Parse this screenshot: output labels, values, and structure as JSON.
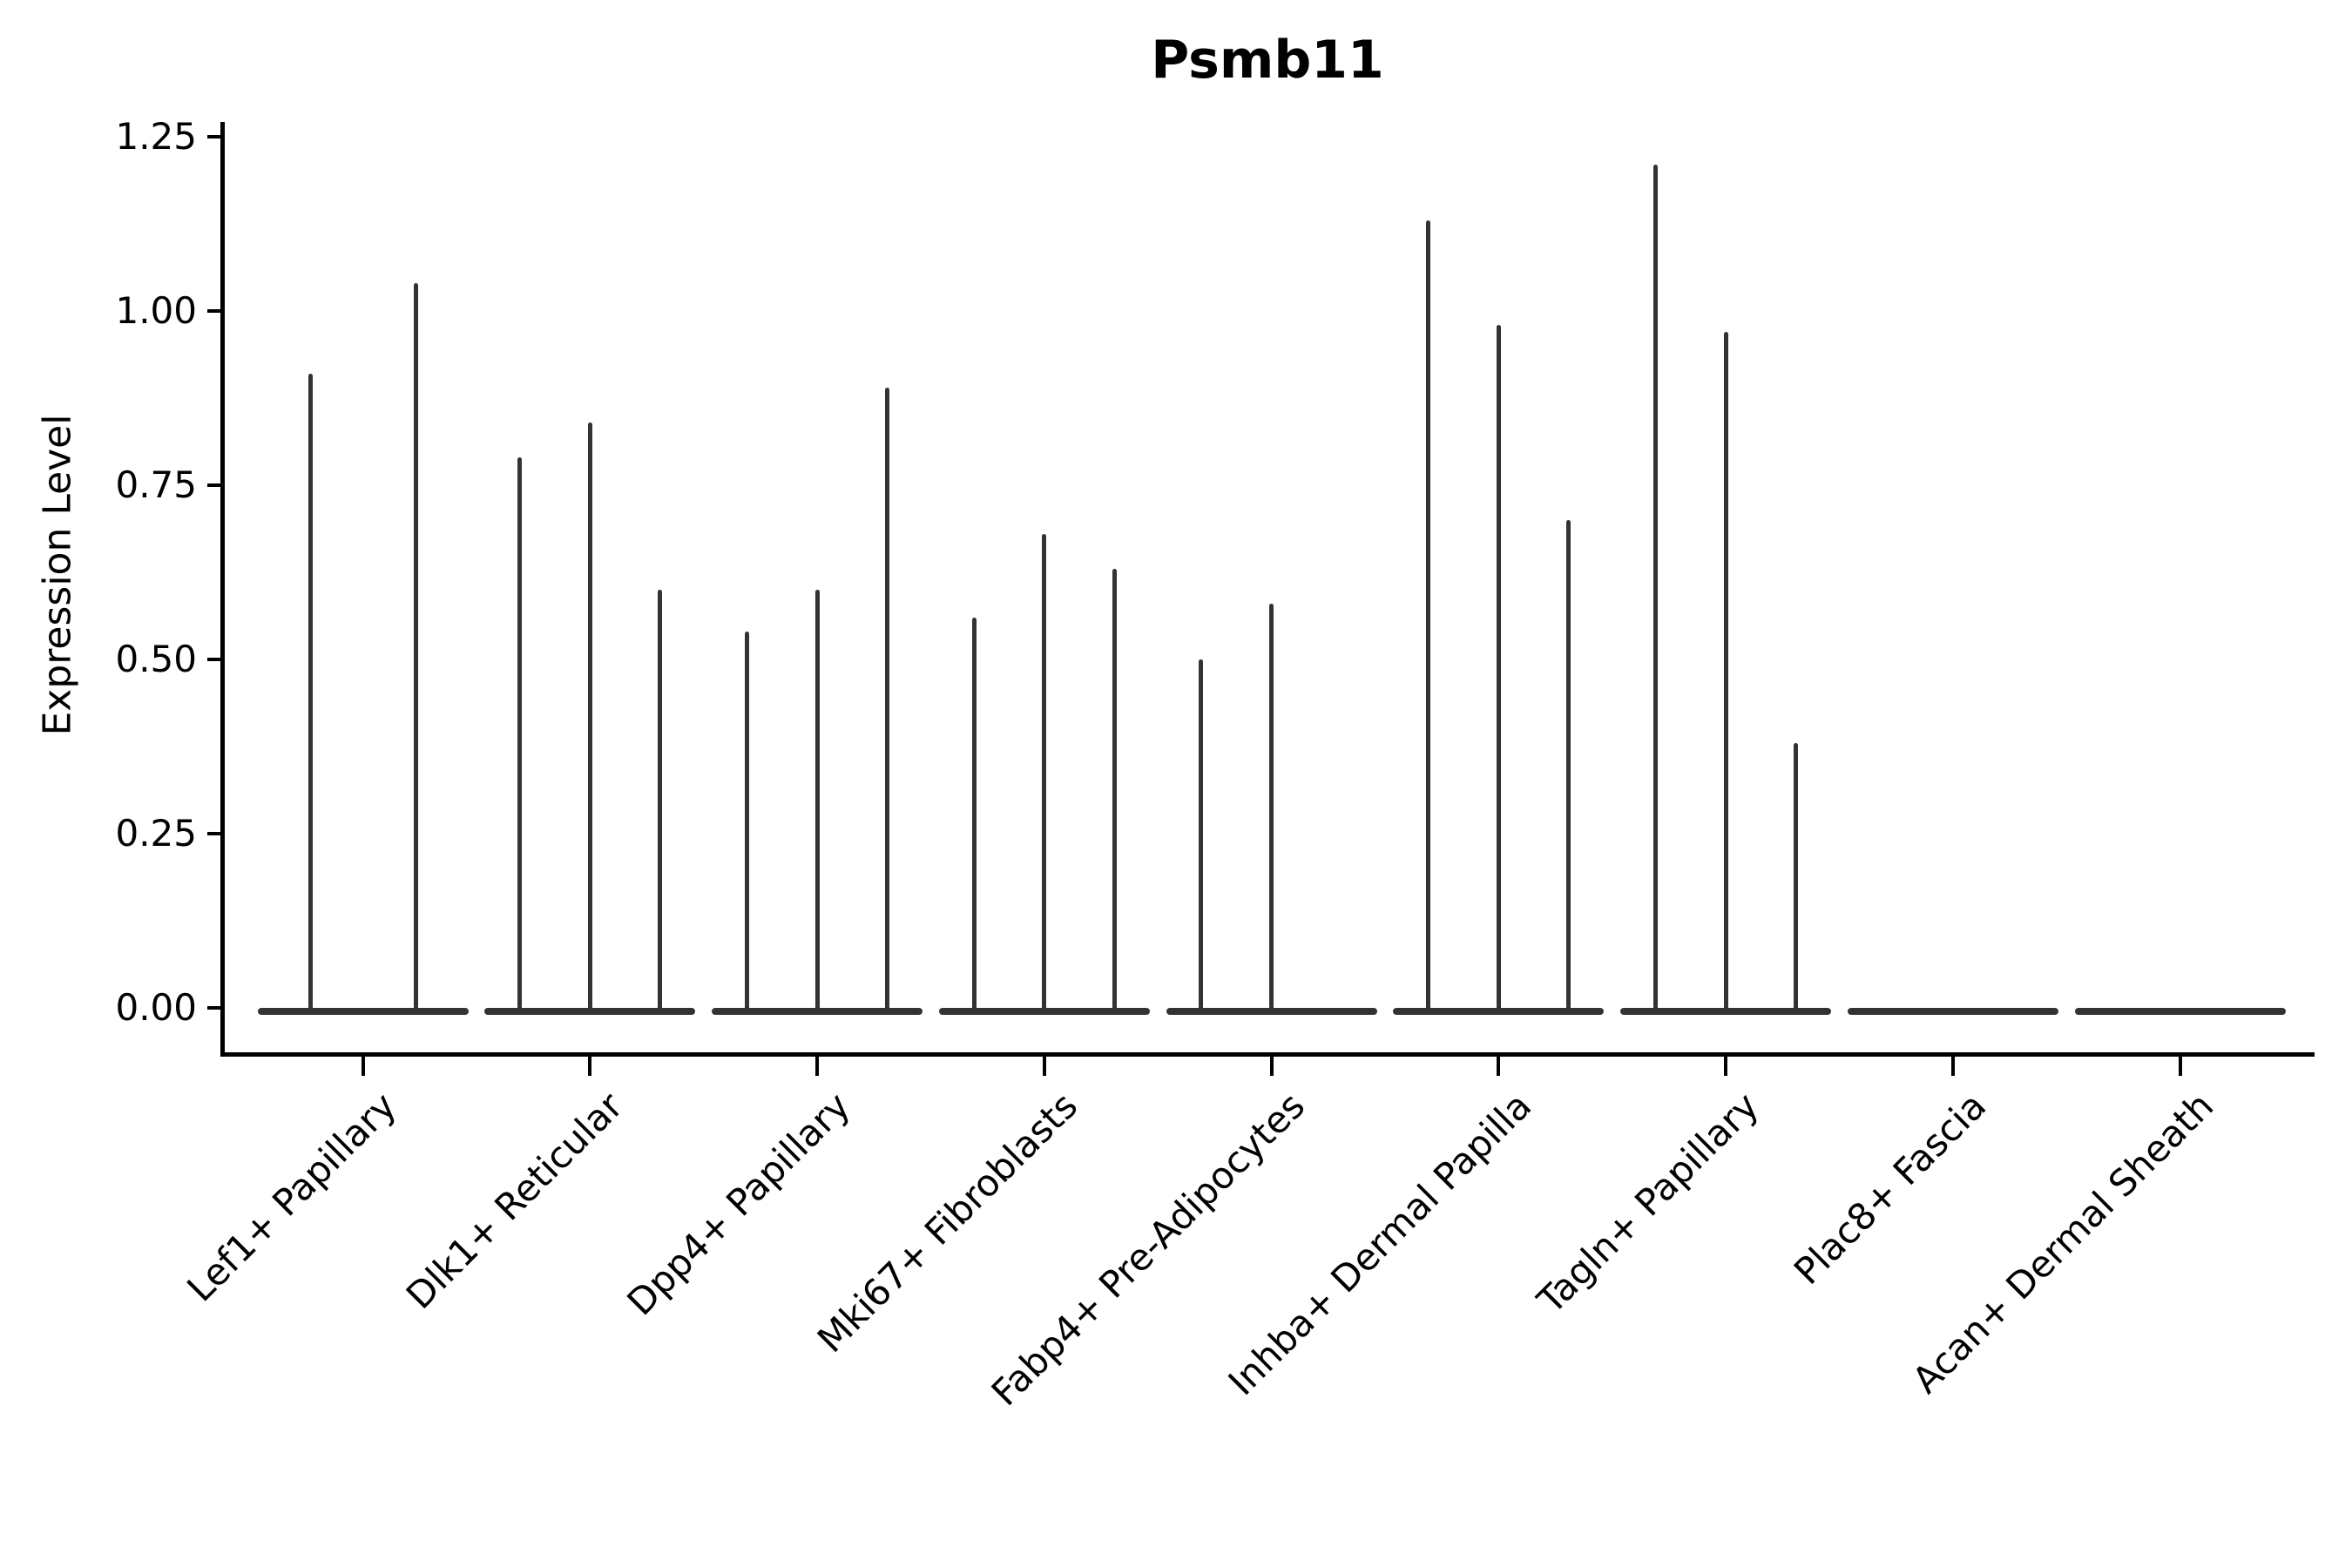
{
  "title": "Psmb11",
  "chart_data": {
    "type": "violin",
    "title": "Psmb11",
    "ylabel": "Expression Level",
    "xlabel": "",
    "ylim": [
      0,
      1.28
    ],
    "y_ticks": [
      0.0,
      0.25,
      0.5,
      0.75,
      1.0,
      1.25
    ],
    "y_tick_labels": [
      "0.00",
      "0.25",
      "0.50",
      "0.75",
      "1.00",
      "1.25"
    ],
    "grid": false,
    "legend": "none",
    "violin_color": "#333333",
    "axis_color": "#000000",
    "categories": [
      "Lef1+ Papillary",
      "Dlk1+ Reticular",
      "Dpp4+ Papillary",
      "Mki67+ Fibroblasts",
      "Fabp4+ Pre-Adipocytes",
      "Inhba+ Dermal Papilla",
      "Tagln+ Papillary",
      "Plac8+ Fascia",
      "Acan+ Dermal Sheath"
    ],
    "groups": [
      {
        "category": "Lef1+ Papillary",
        "violin_maxima": [
          0.91,
          1.04
        ]
      },
      {
        "category": "Dlk1+ Reticular",
        "violin_maxima": [
          0.79,
          0.84,
          0.6
        ]
      },
      {
        "category": "Dpp4+ Papillary",
        "violin_maxima": [
          0.54,
          0.6,
          0.89
        ]
      },
      {
        "category": "Mki67+ Fibroblasts",
        "violin_maxima": [
          0.56,
          0.68,
          0.63
        ]
      },
      {
        "category": "Fabp4+ Pre-Adipocytes",
        "violin_maxima": [
          0.5,
          0.58,
          0.0
        ]
      },
      {
        "category": "Inhba+ Dermal Papilla",
        "violin_maxima": [
          1.13,
          0.98,
          0.7
        ]
      },
      {
        "category": "Tagln+ Papillary",
        "violin_maxima": [
          1.21,
          0.97,
          0.38
        ]
      },
      {
        "category": "Plac8+ Fascia",
        "violin_maxima": [
          0.0
        ]
      },
      {
        "category": "Acan+ Dermal Sheath",
        "violin_maxima": [
          0.0
        ]
      }
    ]
  }
}
